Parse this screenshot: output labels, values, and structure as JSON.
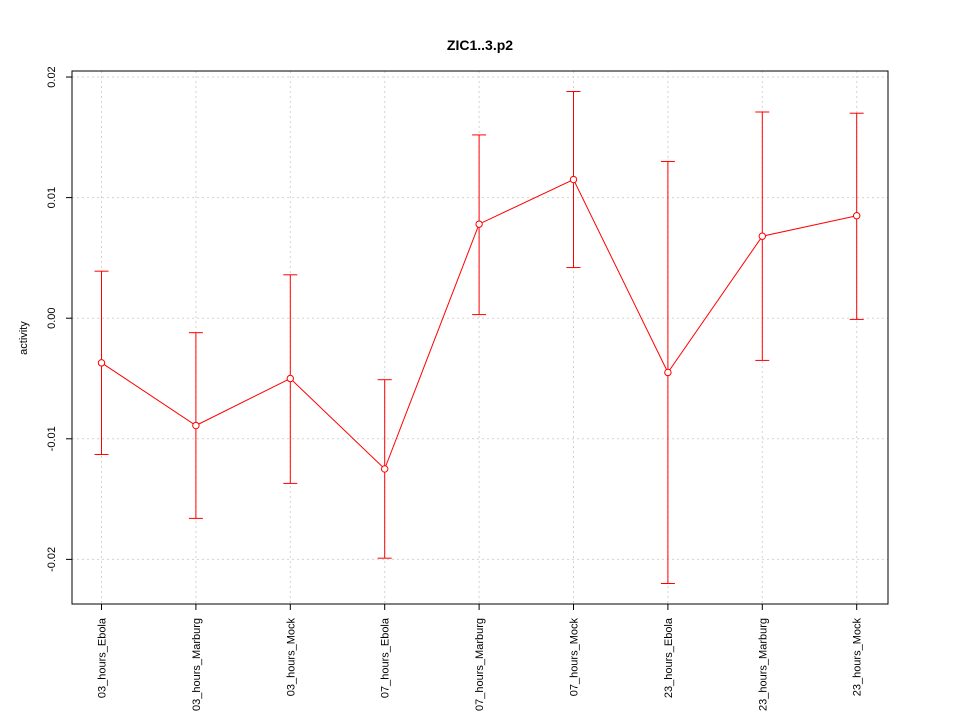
{
  "chart_data": {
    "type": "line",
    "title": "ZIC1..3.p2",
    "xlabel": "",
    "ylabel": "activity",
    "categories": [
      "03_hours_Ebola",
      "03_hours_Marburg",
      "03_hours_Mock",
      "07_hours_Ebola",
      "07_hours_Marburg",
      "07_hours_Mock",
      "23_hours_Ebola",
      "23_hours_Marburg",
      "23_hours_Mock"
    ],
    "series": [
      {
        "values": [
          -0.0037,
          -0.0089,
          -0.005,
          -0.0125,
          0.0078,
          0.0115,
          -0.0045,
          0.0068,
          0.0085
        ],
        "lower": [
          -0.0113,
          -0.0166,
          -0.0137,
          -0.0199,
          0.0003,
          0.0042,
          -0.022,
          -0.0035,
          -0.0001
        ],
        "upper": [
          0.0039,
          -0.0012,
          0.0036,
          -0.0051,
          0.0152,
          0.0188,
          0.013,
          0.0171,
          0.017
        ],
        "color": "#ff0000"
      }
    ],
    "yticks": [
      -0.02,
      -0.01,
      0.0,
      0.01,
      0.02
    ],
    "ytick_labels": [
      "-0.02",
      "-0.01",
      "0.00",
      "0.01",
      "0.02"
    ],
    "ylim": [
      -0.0237,
      0.0205
    ],
    "grid": true
  }
}
